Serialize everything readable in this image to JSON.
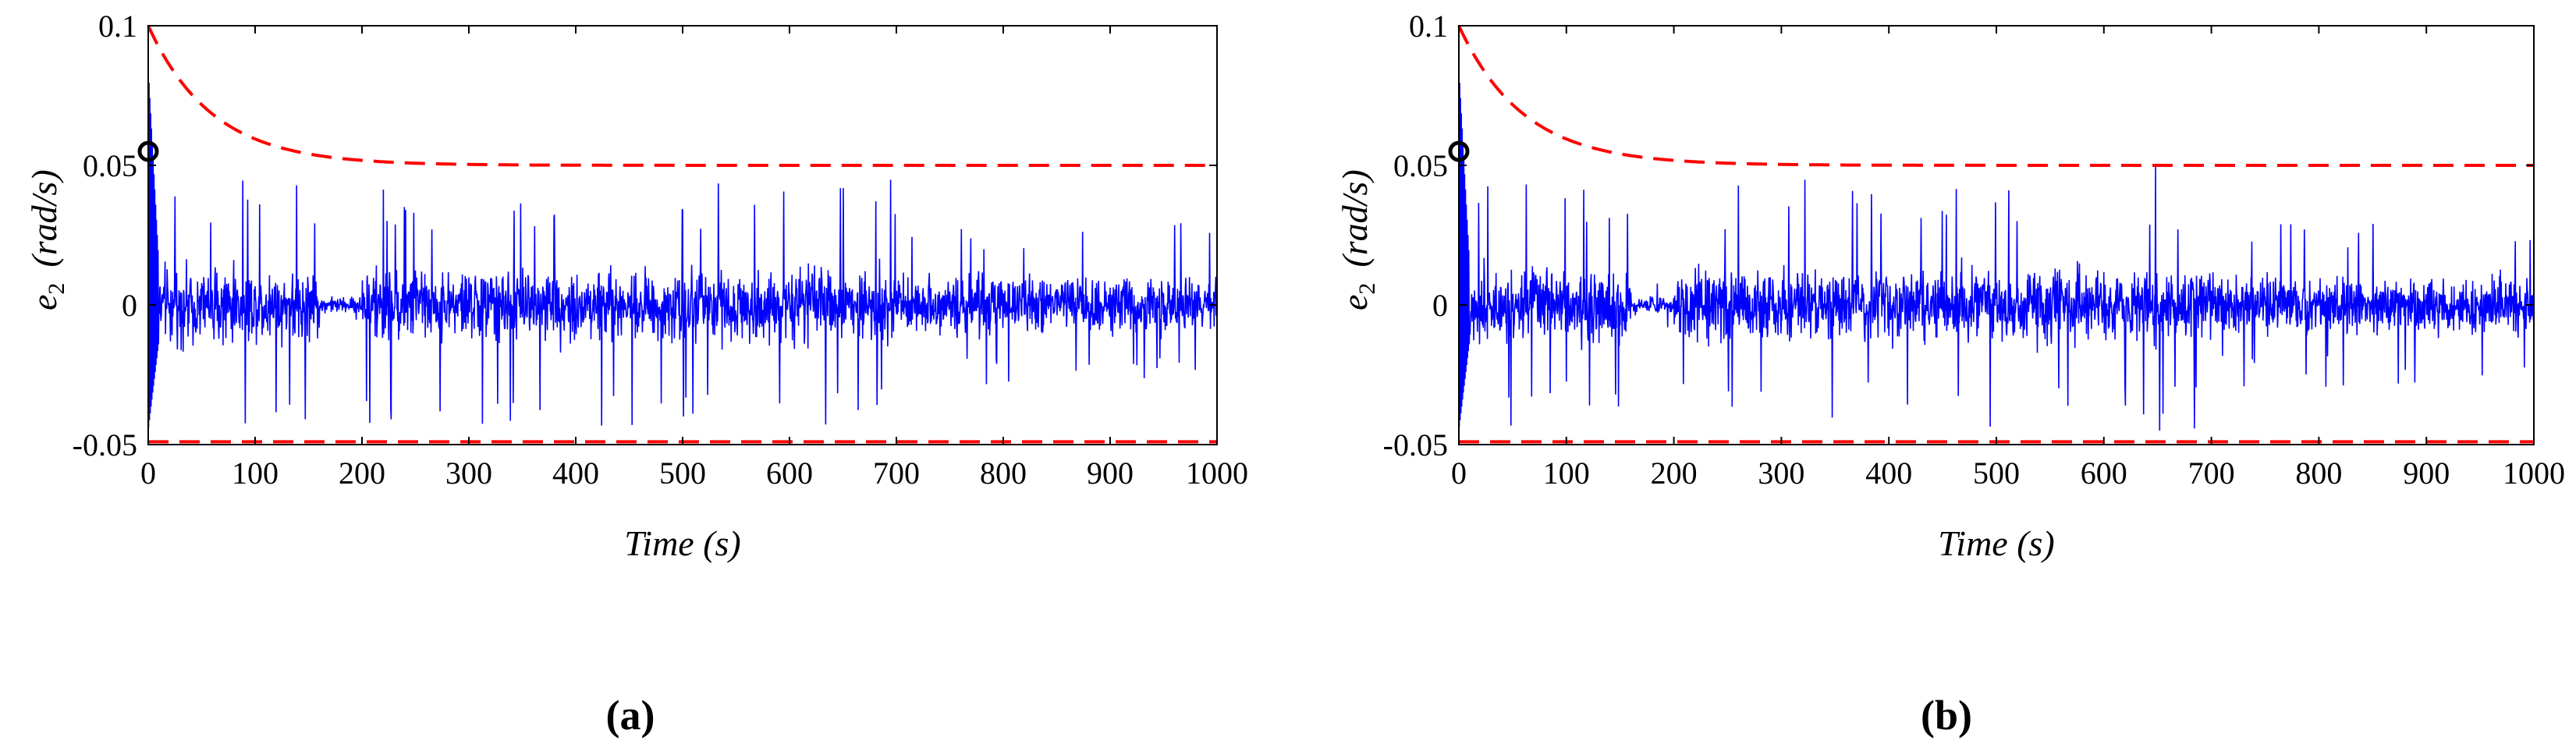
{
  "figure": {
    "title": "",
    "colors": {
      "signal": "#0000ff",
      "bound": "#ff0000",
      "marker": "#000000",
      "axes": "#000000"
    }
  },
  "chart_data": [
    {
      "panel": "a",
      "panel_label": "(a)",
      "type": "line",
      "title": "",
      "xlabel": "Time (s)",
      "ylabel": "e2 (rad/s)",
      "ylabel_parts": {
        "var": "e",
        "sub": "2",
        "units": "(rad/s)"
      },
      "xlim": [
        0,
        1000
      ],
      "ylim": [
        -0.05,
        0.1
      ],
      "xticks": [
        0,
        100,
        200,
        300,
        400,
        500,
        600,
        700,
        800,
        900,
        1000
      ],
      "xtick_labels": [
        "0",
        "100",
        "200",
        "300",
        "400",
        "500",
        "600",
        "700",
        "800",
        "900",
        "1000"
      ],
      "yticks": [
        -0.05,
        0,
        0.05,
        0.1
      ],
      "ytick_labels": [
        "-0.05",
        "0",
        "0.05",
        "0.1"
      ],
      "grid": false,
      "series": [
        {
          "name": "e2",
          "color": "#0000ff",
          "style": "solid",
          "description": "noisy error signal around 0",
          "noise_segments": [
            {
              "x0": 0,
              "x1": 160,
              "amp": 0.018,
              "spike": 0.045
            },
            {
              "x0": 160,
              "x1": 200,
              "amp": 0.004,
              "spike": 0.008
            },
            {
              "x0": 200,
              "x1": 700,
              "amp": 0.018,
              "spike": 0.045
            },
            {
              "x0": 700,
              "x1": 1000,
              "amp": 0.014,
              "spike": 0.03
            }
          ],
          "initial_spike": {
            "x": 2,
            "y": 0.085,
            "y_min": -0.045
          }
        },
        {
          "name": "upper bound",
          "color": "#ff0000",
          "style": "dashed",
          "function": "0.05 + 0.05*exp(-x/60)",
          "start": 0.1,
          "steady": 0.05
        },
        {
          "name": "lower bound",
          "color": "#ff0000",
          "style": "dashed",
          "constant": -0.049
        }
      ],
      "marker": {
        "x": 0,
        "y": 0.055,
        "shape": "circle"
      }
    },
    {
      "panel": "b",
      "panel_label": "(b)",
      "type": "line",
      "title": "",
      "xlabel": "Time (s)",
      "ylabel": "e2 (rad/s)",
      "ylabel_parts": {
        "var": "e",
        "sub": "2",
        "units": "(rad/s)"
      },
      "xlim": [
        0,
        1000
      ],
      "ylim": [
        -0.05,
        0.1
      ],
      "xticks": [
        0,
        100,
        200,
        300,
        400,
        500,
        600,
        700,
        800,
        900,
        1000
      ],
      "xtick_labels": [
        "0",
        "100",
        "200",
        "300",
        "400",
        "500",
        "600",
        "700",
        "800",
        "900",
        "1000"
      ],
      "yticks": [
        -0.05,
        0,
        0.05,
        0.1
      ],
      "ytick_labels": [
        "-0.05",
        "0",
        "0.05",
        "0.1"
      ],
      "grid": false,
      "series": [
        {
          "name": "e2",
          "color": "#0000ff",
          "style": "solid",
          "description": "noisy error signal around 0 with spike near 650 s",
          "noise_segments": [
            {
              "x0": 0,
              "x1": 160,
              "amp": 0.018,
              "spike": 0.045
            },
            {
              "x0": 160,
              "x1": 200,
              "amp": 0.004,
              "spike": 0.008
            },
            {
              "x0": 200,
              "x1": 700,
              "amp": 0.018,
              "spike": 0.045
            },
            {
              "x0": 700,
              "x1": 1000,
              "amp": 0.014,
              "spike": 0.03
            }
          ],
          "initial_spike": {
            "x": 2,
            "y": 0.085,
            "y_min": -0.045
          },
          "extra_spikes": [
            {
              "x": 648,
              "y": 0.05
            },
            {
              "x": 652,
              "y": -0.045
            }
          ]
        },
        {
          "name": "upper bound",
          "color": "#ff0000",
          "style": "dashed",
          "function": "0.05 + 0.05*exp(-x/60)",
          "start": 0.1,
          "steady": 0.05
        },
        {
          "name": "lower bound",
          "color": "#ff0000",
          "style": "dashed",
          "constant": -0.049
        }
      ],
      "marker": {
        "x": 0,
        "y": 0.055,
        "shape": "circle"
      }
    }
  ]
}
